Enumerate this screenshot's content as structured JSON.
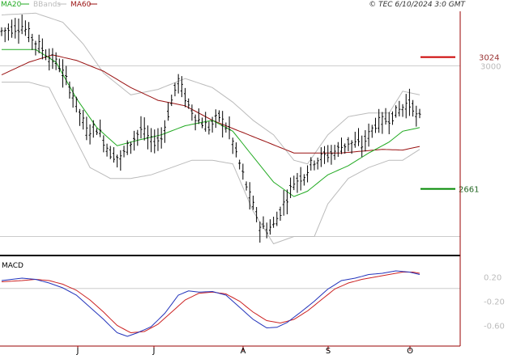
{
  "header": {
    "legend": [
      {
        "label": "MA20",
        "color": "#22aa22"
      },
      {
        "label": "BBands",
        "color": "#bbbbbb"
      },
      {
        "label": "MA60",
        "color": "#991111"
      }
    ],
    "copyright": "© TEC 6/10/2024 3:0 GMT"
  },
  "colors": {
    "price": "#000000",
    "ma20": "#22aa22",
    "ma60": "#991111",
    "bbands": "#bbbbbb",
    "macd": "#2233bb",
    "signal": "#cc2222",
    "resistance": "#cc0000",
    "support": "#008800",
    "axis": "#990000",
    "grid": "#cccccc",
    "tick_text": "#bbbbbb"
  },
  "chart_data": [
    {
      "type": "ohlc",
      "panel": "price",
      "x_ticks": [
        "J",
        "J",
        "A",
        "S",
        "O"
      ],
      "y_ticks": [
        "3000"
      ],
      "ylim": [
        2480,
        3150
      ],
      "levels": [
        {
          "label": "3024",
          "value": 3024,
          "role": "resistance"
        },
        {
          "label": "2661",
          "value": 2661,
          "role": "support"
        }
      ],
      "price_anchors": [
        [
          0,
          3095
        ],
        [
          6,
          3110
        ],
        [
          10,
          3065
        ],
        [
          14,
          3025
        ],
        [
          17,
          3000
        ],
        [
          21,
          2920
        ],
        [
          25,
          2820
        ],
        [
          28,
          2830
        ],
        [
          32,
          2760
        ],
        [
          35,
          2745
        ],
        [
          38,
          2790
        ],
        [
          41,
          2825
        ],
        [
          44,
          2790
        ],
        [
          47,
          2800
        ],
        [
          50,
          2905
        ],
        [
          52,
          2960
        ],
        [
          55,
          2890
        ],
        [
          58,
          2850
        ],
        [
          61,
          2830
        ],
        [
          64,
          2860
        ],
        [
          67,
          2820
        ],
        [
          70,
          2730
        ],
        [
          73,
          2640
        ],
        [
          76,
          2560
        ],
        [
          78,
          2550
        ],
        [
          80,
          2560
        ],
        [
          83,
          2620
        ],
        [
          86,
          2680
        ],
        [
          89,
          2700
        ],
        [
          92,
          2740
        ],
        [
          96,
          2755
        ],
        [
          99,
          2770
        ],
        [
          102,
          2790
        ],
        [
          106,
          2780
        ],
        [
          110,
          2840
        ],
        [
          113,
          2850
        ],
        [
          116,
          2870
        ],
        [
          119,
          2895
        ],
        [
          121,
          2890
        ],
        [
          122,
          2860
        ],
        [
          123,
          2855
        ]
      ],
      "series": [
        {
          "name": "MA20",
          "values": [
            [
              0,
              3045
            ],
            [
              10,
              3045
            ],
            [
              16,
              3010
            ],
            [
              22,
              2910
            ],
            [
              28,
              2830
            ],
            [
              34,
              2780
            ],
            [
              40,
              2795
            ],
            [
              47,
              2810
            ],
            [
              54,
              2835
            ],
            [
              62,
              2850
            ],
            [
              68,
              2820
            ],
            [
              74,
              2750
            ],
            [
              80,
              2680
            ],
            [
              86,
              2640
            ],
            [
              90,
              2655
            ],
            [
              96,
              2700
            ],
            [
              102,
              2725
            ],
            [
              108,
              2760
            ],
            [
              114,
              2790
            ],
            [
              118,
              2820
            ],
            [
              123,
              2830
            ]
          ]
        },
        {
          "name": "MA60",
          "values": [
            [
              0,
              2975
            ],
            [
              8,
              3010
            ],
            [
              15,
              3030
            ],
            [
              22,
              3015
            ],
            [
              30,
              2985
            ],
            [
              38,
              2940
            ],
            [
              46,
              2905
            ],
            [
              54,
              2890
            ],
            [
              62,
              2850
            ],
            [
              70,
              2820
            ],
            [
              78,
              2790
            ],
            [
              86,
              2760
            ],
            [
              92,
              2760
            ],
            [
              100,
              2760
            ],
            [
              106,
              2765
            ],
            [
              112,
              2770
            ],
            [
              118,
              2768
            ],
            [
              123,
              2778
            ]
          ]
        },
        {
          "name": "BBands",
          "upper": [
            [
              0,
              3140
            ],
            [
              10,
              3145
            ],
            [
              18,
              3120
            ],
            [
              24,
              3060
            ],
            [
              30,
              2980
            ],
            [
              38,
              2920
            ],
            [
              46,
              2935
            ],
            [
              54,
              2965
            ],
            [
              62,
              2940
            ],
            [
              68,
              2900
            ],
            [
              74,
              2850
            ],
            [
              80,
              2810
            ],
            [
              86,
              2740
            ],
            [
              90,
              2730
            ],
            [
              96,
              2810
            ],
            [
              102,
              2860
            ],
            [
              108,
              2870
            ],
            [
              114,
              2870
            ],
            [
              118,
              2930
            ],
            [
              123,
              2920
            ]
          ],
          "lower": [
            [
              0,
              2955
            ],
            [
              8,
              2955
            ],
            [
              14,
              2940
            ],
            [
              20,
              2830
            ],
            [
              26,
              2720
            ],
            [
              32,
              2690
            ],
            [
              38,
              2690
            ],
            [
              44,
              2700
            ],
            [
              50,
              2720
            ],
            [
              56,
              2740
            ],
            [
              62,
              2740
            ],
            [
              68,
              2730
            ],
            [
              74,
              2600
            ],
            [
              80,
              2510
            ],
            [
              86,
              2530
            ],
            [
              92,
              2530
            ],
            [
              96,
              2620
            ],
            [
              102,
              2690
            ],
            [
              108,
              2720
            ],
            [
              114,
              2740
            ],
            [
              118,
              2740
            ],
            [
              123,
              2770
            ]
          ]
        }
      ]
    },
    {
      "type": "line",
      "panel": "macd",
      "title": "MACD",
      "y_ticks": [
        "0.20",
        "-0.20",
        "-0.60"
      ],
      "ylim": [
        -0.9,
        0.5
      ],
      "series": [
        {
          "name": "MACD",
          "values": [
            [
              0,
              0.14
            ],
            [
              6,
              0.18
            ],
            [
              10,
              0.16
            ],
            [
              14,
              0.1
            ],
            [
              18,
              0.02
            ],
            [
              22,
              -0.1
            ],
            [
              26,
              -0.3
            ],
            [
              30,
              -0.5
            ],
            [
              34,
              -0.72
            ],
            [
              37,
              -0.78
            ],
            [
              40,
              -0.72
            ],
            [
              44,
              -0.62
            ],
            [
              48,
              -0.4
            ],
            [
              52,
              -0.1
            ],
            [
              55,
              -0.03
            ],
            [
              58,
              -0.05
            ],
            [
              62,
              -0.04
            ],
            [
              66,
              -0.1
            ],
            [
              70,
              -0.3
            ],
            [
              74,
              -0.5
            ],
            [
              78,
              -0.64
            ],
            [
              81,
              -0.63
            ],
            [
              84,
              -0.55
            ],
            [
              88,
              -0.38
            ],
            [
              92,
              -0.2
            ],
            [
              96,
              0.0
            ],
            [
              100,
              0.14
            ],
            [
              104,
              0.18
            ],
            [
              108,
              0.24
            ],
            [
              112,
              0.26
            ],
            [
              116,
              0.3
            ],
            [
              120,
              0.28
            ],
            [
              123,
              0.24
            ]
          ]
        },
        {
          "name": "Signal",
          "values": [
            [
              0,
              0.12
            ],
            [
              6,
              0.14
            ],
            [
              10,
              0.16
            ],
            [
              14,
              0.14
            ],
            [
              18,
              0.08
            ],
            [
              22,
              -0.02
            ],
            [
              26,
              -0.18
            ],
            [
              30,
              -0.38
            ],
            [
              34,
              -0.6
            ],
            [
              38,
              -0.72
            ],
            [
              42,
              -0.7
            ],
            [
              46,
              -0.58
            ],
            [
              50,
              -0.38
            ],
            [
              54,
              -0.18
            ],
            [
              58,
              -0.07
            ],
            [
              62,
              -0.05
            ],
            [
              66,
              -0.08
            ],
            [
              70,
              -0.2
            ],
            [
              74,
              -0.38
            ],
            [
              78,
              -0.52
            ],
            [
              82,
              -0.56
            ],
            [
              86,
              -0.5
            ],
            [
              90,
              -0.36
            ],
            [
              94,
              -0.18
            ],
            [
              98,
              0.0
            ],
            [
              102,
              0.1
            ],
            [
              106,
              0.16
            ],
            [
              110,
              0.2
            ],
            [
              114,
              0.24
            ],
            [
              118,
              0.28
            ],
            [
              121,
              0.28
            ],
            [
              123,
              0.26
            ]
          ]
        }
      ]
    }
  ]
}
